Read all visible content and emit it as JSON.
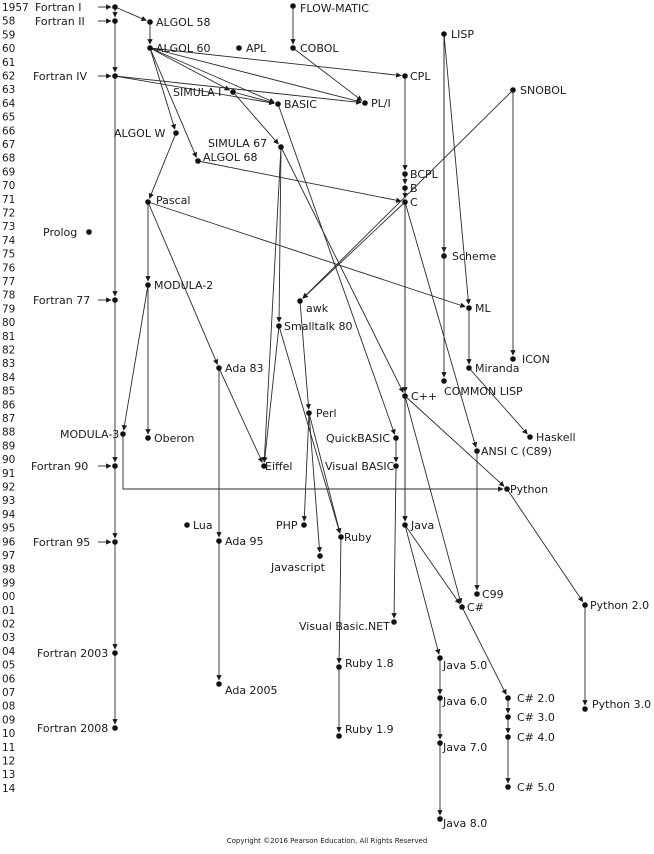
{
  "years": [
    "1957",
    "58",
    "59",
    "60",
    "61",
    "62",
    "63",
    "64",
    "65",
    "66",
    "67",
    "68",
    "69",
    "70",
    "71",
    "72",
    "73",
    "74",
    "75",
    "76",
    "77",
    "78",
    "79",
    "80",
    "81",
    "82",
    "83",
    "84",
    "85",
    "86",
    "87",
    "88",
    "89",
    "90",
    "91",
    "92",
    "93",
    "94",
    "95",
    "96",
    "97",
    "98",
    "99",
    "00",
    "01",
    "02",
    "03",
    "04",
    "05",
    "06",
    "07",
    "08",
    "09",
    "10",
    "11",
    "12",
    "13",
    "14"
  ],
  "languages": {
    "fortran1": "Fortran I",
    "fortran2": "Fortran II",
    "fortran4": "Fortran IV",
    "fortran77": "Fortran 77",
    "fortran90": "Fortran 90",
    "fortran95": "Fortran 95",
    "fortran2003": "Fortran 2003",
    "fortran2008": "Fortran 2008",
    "algol58": "ALGOL 58",
    "algol60": "ALGOL 60",
    "algolw": "ALGOL W",
    "algol68": "ALGOL 68",
    "apl": "APL",
    "flowmatic": "FLOW-MATIC",
    "cobol": "COBOL",
    "lisp": "LISP",
    "cpl": "CPL",
    "snobol": "SNOBOL",
    "simula1": "SIMULA I",
    "basic": "BASIC",
    "pli": "PL/I",
    "simula67": "SIMULA 67",
    "bcpl": "BCPL",
    "b": "B",
    "c": "C",
    "pascal": "Pascal",
    "prolog": "Prolog",
    "scheme": "Scheme",
    "modula2": "MODULA-2",
    "fortran77_dummy": "",
    "awk": "awk",
    "ml": "ML",
    "smalltalk80": "Smalltalk 80",
    "icon": "ICON",
    "ada83": "Ada 83",
    "miranda": "Miranda",
    "commonlisp": "COMMON LISP",
    "cpp": "C++",
    "perl": "Perl",
    "modula3": "MODULA-3",
    "oberon": "Oberon",
    "quickbasic": "QuickBASIC",
    "haskell": "Haskell",
    "ansic": "ANSI C (C89)",
    "eiffel": "Eiffel",
    "visualbasic": "Visual BASIC",
    "python": "Python",
    "lua": "Lua",
    "php": "PHP",
    "java": "Java",
    "ada95": "Ada 95",
    "ruby": "Ruby",
    "javascript": "Javascript",
    "c99": "C99",
    "csharp": "C#",
    "python2": "Python 2.0",
    "vbnet": "Visual Basic.NET",
    "java5": "Java 5.0",
    "ruby18": "Ruby 1.8",
    "ada2005": "Ada 2005",
    "java6": "Java 6.0",
    "csharp2": "C# 2.0",
    "csharp3": "C# 3.0",
    "python3": "Python 3.0",
    "csharp4": "C# 4.0",
    "ruby19": "Ruby 1.9",
    "java7": "Java 7.0",
    "csharp5": "C# 5.0",
    "java8": "Java 8.0"
  },
  "copyright": "Copyright ©2016 Pearson Education, All Rights Reserved"
}
